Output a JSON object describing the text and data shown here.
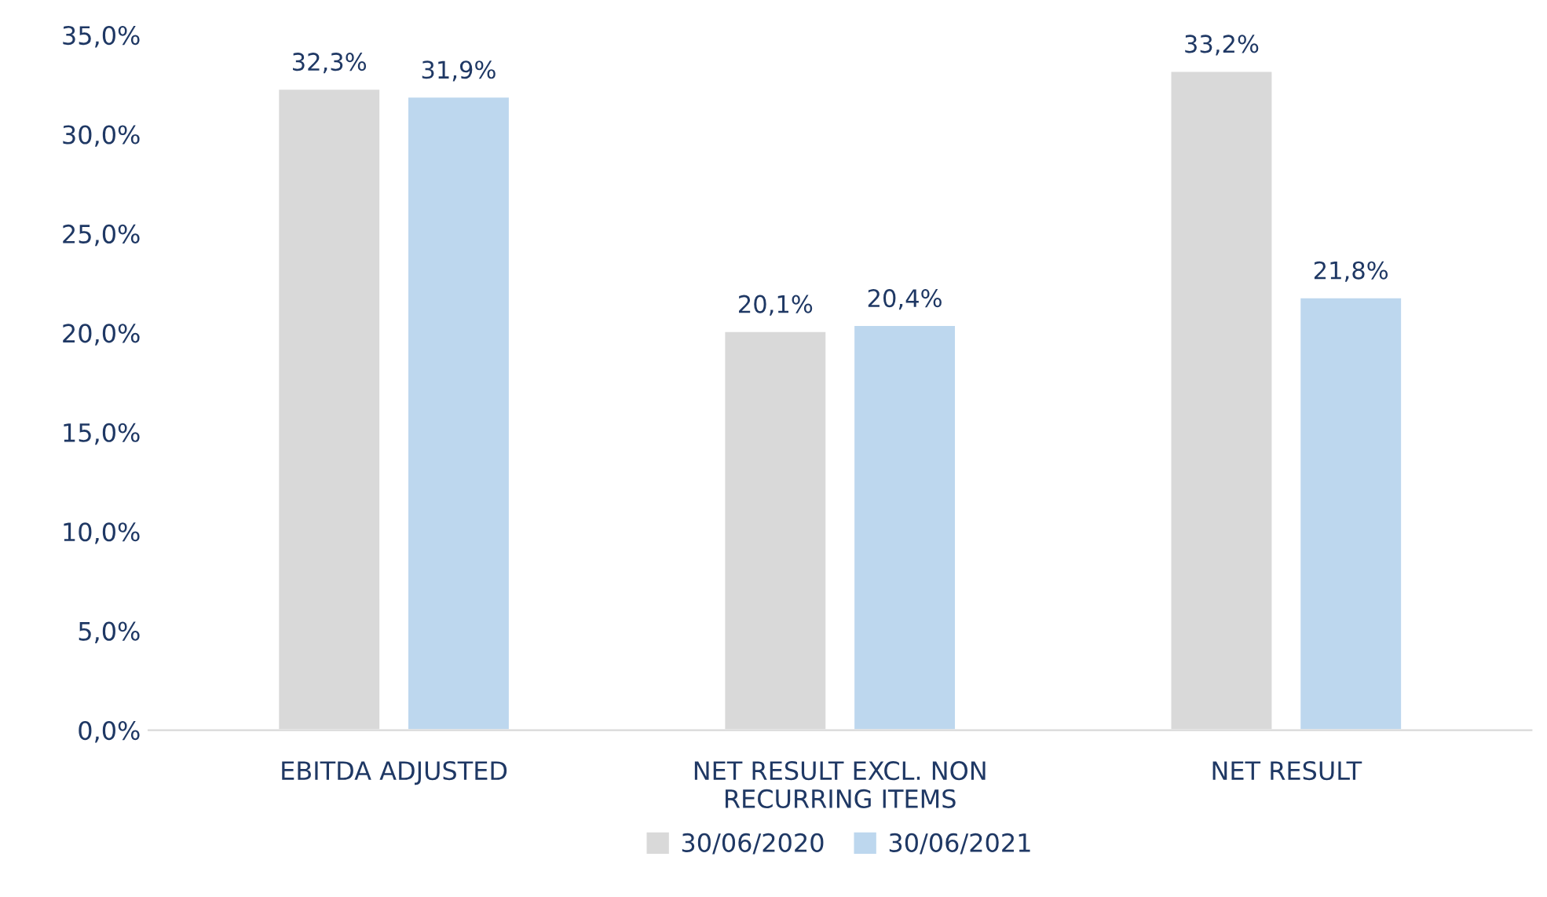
{
  "chart_data": {
    "type": "bar",
    "categories": [
      "EBITDA ADJUSTED",
      "NET RESULT EXCL. NON\nRECURRING ITEMS",
      "NET RESULT"
    ],
    "series": [
      {
        "name": "30/06/2020",
        "color": "#d9d9d9",
        "values": [
          32.3,
          20.1,
          33.2
        ],
        "value_labels": [
          "32,3%",
          "20,1%",
          "33,2%"
        ]
      },
      {
        "name": "30/06/2021",
        "color": "#bdd7ee",
        "values": [
          31.9,
          20.4,
          21.8
        ],
        "value_labels": [
          "31,9%",
          "20,4%",
          "21,8%"
        ]
      }
    ],
    "ylim": [
      0,
      35
    ],
    "yticks": [
      {
        "value": 0,
        "label": "0,0%"
      },
      {
        "value": 5,
        "label": "5,0%"
      },
      {
        "value": 10,
        "label": "10,0%"
      },
      {
        "value": 15,
        "label": "15,0%"
      },
      {
        "value": 20,
        "label": "20,0%"
      },
      {
        "value": 25,
        "label": "25,0%"
      },
      {
        "value": 30,
        "label": "30,0%"
      },
      {
        "value": 35,
        "label": "35,0%"
      }
    ],
    "grid": false,
    "legend": "bottom"
  }
}
